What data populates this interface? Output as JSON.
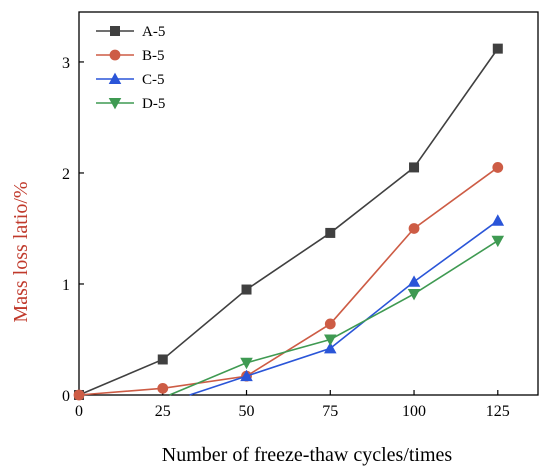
{
  "chart_data": {
    "type": "line",
    "title": "",
    "xlabel": "Number of freeze-thaw cycles/times",
    "ylabel": "Mass loss latio/%",
    "xlim": [
      0,
      137
    ],
    "ylim": [
      0,
      3.45
    ],
    "x_ticks": [
      0,
      25,
      50,
      75,
      100,
      125
    ],
    "y_ticks": [
      0,
      1,
      2,
      3
    ],
    "grid": false,
    "legend_position": "top-left",
    "ylabel_color": "#c0392b",
    "series": [
      {
        "name": "A-5",
        "color": "#404040",
        "marker": "square",
        "x": [
          0,
          25,
          50,
          75,
          100,
          125
        ],
        "y": [
          0,
          0.32,
          0.95,
          1.46,
          2.05,
          3.12
        ]
      },
      {
        "name": "B-5",
        "color": "#cd5c45",
        "marker": "circle",
        "x": [
          0,
          25,
          50,
          75,
          100,
          125
        ],
        "y": [
          0,
          0.06,
          0.17,
          0.64,
          1.5,
          2.05
        ]
      },
      {
        "name": "C-5",
        "color": "#2a55d8",
        "marker": "triangle-up",
        "x": [
          33,
          50,
          75,
          100,
          125
        ],
        "y": [
          0,
          0.17,
          0.42,
          1.02,
          1.57
        ],
        "marker_x": [
          50,
          75,
          100,
          125
        ],
        "marker_y": [
          0.17,
          0.42,
          1.02,
          1.57
        ]
      },
      {
        "name": "D-5",
        "color": "#3f9a52",
        "marker": "triangle-down",
        "x": [
          27,
          50,
          75,
          100,
          125
        ],
        "y": [
          0,
          0.29,
          0.5,
          0.91,
          1.39
        ],
        "marker_x": [
          50,
          75,
          100,
          125
        ],
        "marker_y": [
          0.29,
          0.5,
          0.91,
          1.39
        ]
      }
    ]
  }
}
